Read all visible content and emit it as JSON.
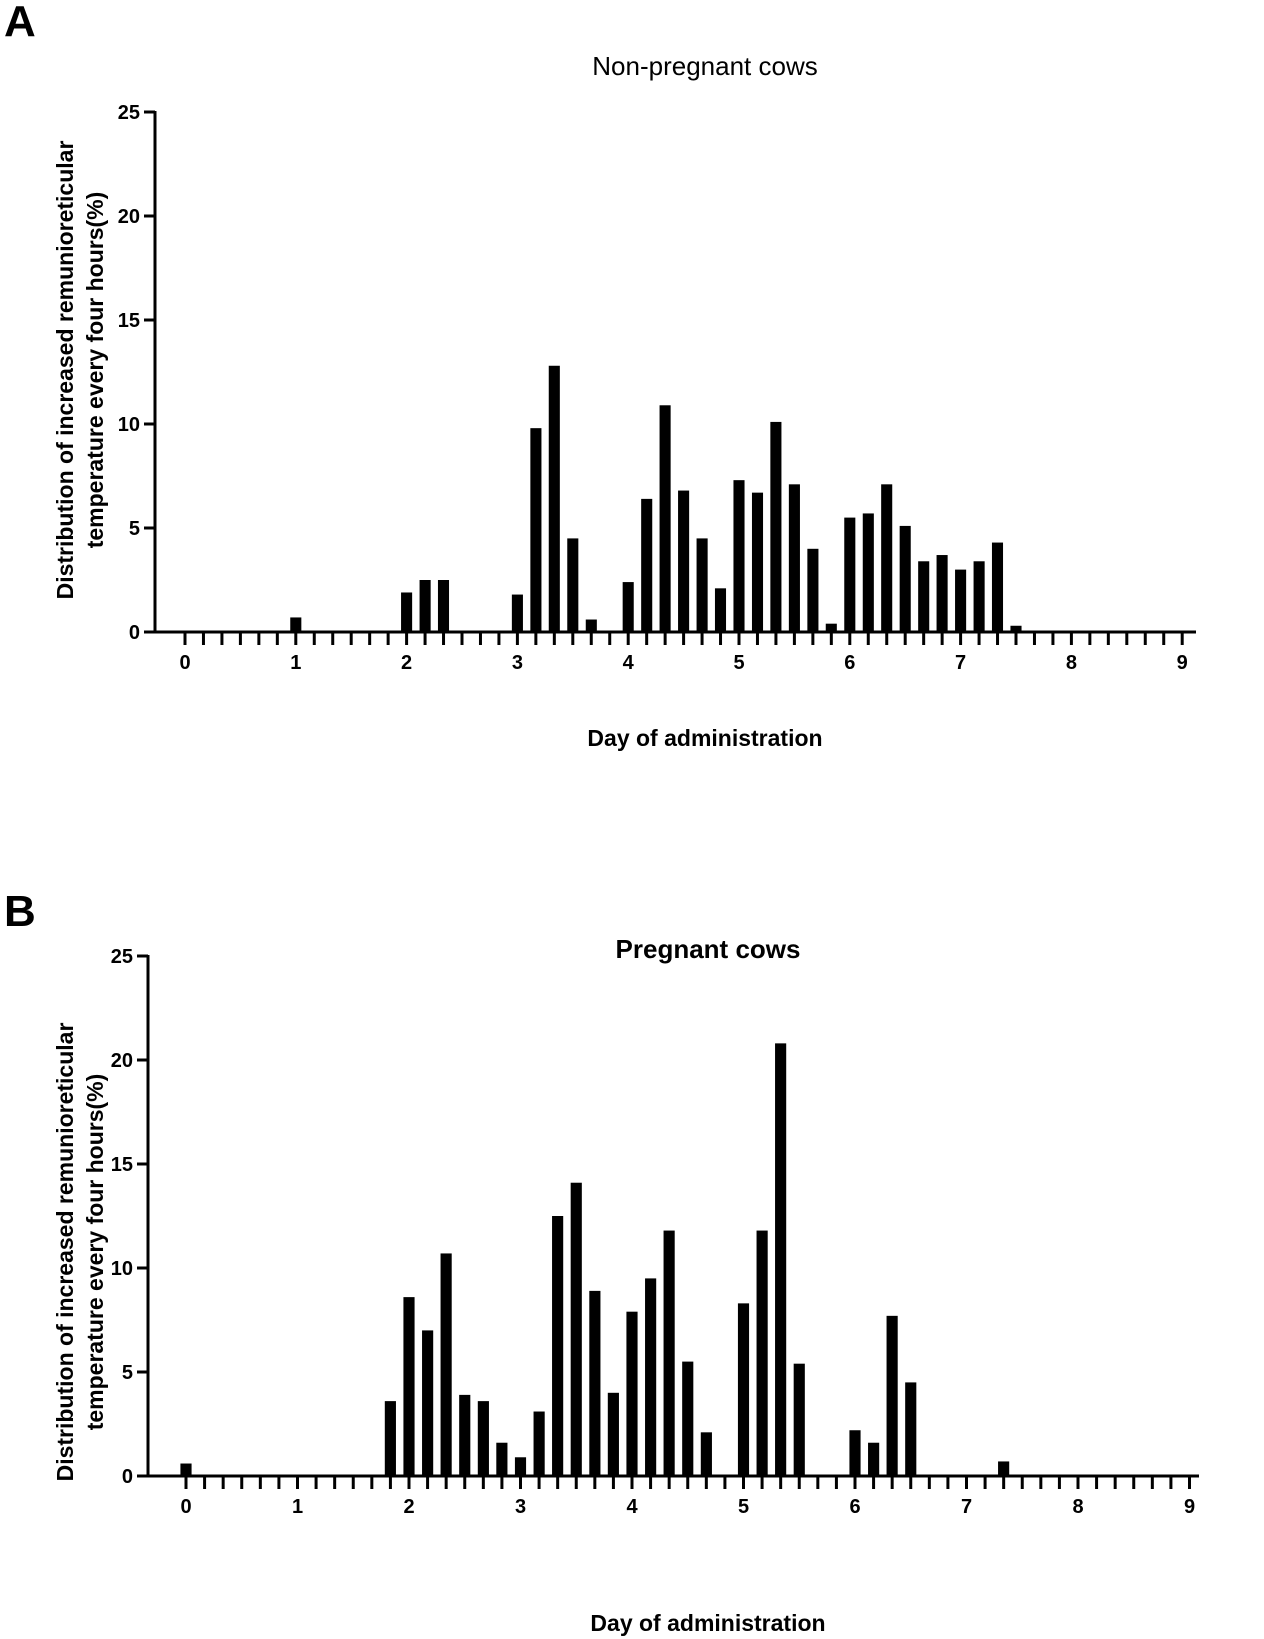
{
  "chart_data": [
    {
      "panel": "A",
      "type": "bar",
      "title": "Non-pregnant cows",
      "xlabel": "Day of administration",
      "ylabel": [
        "Distribution of increased remunioreticular",
        "temperature every four hours(%)"
      ],
      "xlim": [
        0,
        9
      ],
      "ylim": [
        0,
        25
      ],
      "x_ticks": [
        0,
        1,
        2,
        3,
        4,
        5,
        6,
        7,
        8,
        9
      ],
      "y_ticks": [
        0,
        5,
        10,
        15,
        20,
        25
      ],
      "bin_width_days": 0.1667,
      "bars": [
        {
          "x": 1.0,
          "y": 0.7
        },
        {
          "x": 2.0,
          "y": 1.9
        },
        {
          "x": 2.167,
          "y": 2.5
        },
        {
          "x": 2.333,
          "y": 2.5
        },
        {
          "x": 3.0,
          "y": 1.8
        },
        {
          "x": 3.167,
          "y": 9.8
        },
        {
          "x": 3.333,
          "y": 12.8
        },
        {
          "x": 3.5,
          "y": 4.5
        },
        {
          "x": 3.667,
          "y": 0.6
        },
        {
          "x": 4.0,
          "y": 2.4
        },
        {
          "x": 4.167,
          "y": 6.4
        },
        {
          "x": 4.333,
          "y": 10.9
        },
        {
          "x": 4.5,
          "y": 6.8
        },
        {
          "x": 4.667,
          "y": 4.5
        },
        {
          "x": 4.833,
          "y": 2.1
        },
        {
          "x": 5.0,
          "y": 7.3
        },
        {
          "x": 5.167,
          "y": 6.7
        },
        {
          "x": 5.333,
          "y": 10.1
        },
        {
          "x": 5.5,
          "y": 7.1
        },
        {
          "x": 5.667,
          "y": 4.0
        },
        {
          "x": 5.833,
          "y": 0.4
        },
        {
          "x": 6.0,
          "y": 5.5
        },
        {
          "x": 6.167,
          "y": 5.7
        },
        {
          "x": 6.333,
          "y": 7.1
        },
        {
          "x": 6.5,
          "y": 5.1
        },
        {
          "x": 6.667,
          "y": 3.4
        },
        {
          "x": 6.833,
          "y": 3.7
        },
        {
          "x": 7.0,
          "y": 3.0
        },
        {
          "x": 7.167,
          "y": 3.4
        },
        {
          "x": 7.333,
          "y": 4.3
        },
        {
          "x": 7.5,
          "y": 0.3
        }
      ]
    },
    {
      "panel": "B",
      "type": "bar",
      "title": "Pregnant cows",
      "xlabel": "Day of administration",
      "ylabel": [
        "Distribution of increased remunioreticular",
        "temperature every four hours(%)"
      ],
      "xlim": [
        0,
        9
      ],
      "ylim": [
        0,
        25
      ],
      "x_ticks": [
        0,
        1,
        2,
        3,
        4,
        5,
        6,
        7,
        8,
        9
      ],
      "y_ticks": [
        0,
        5,
        10,
        15,
        20,
        25
      ],
      "bin_width_days": 0.1667,
      "bars": [
        {
          "x": 0.0,
          "y": 0.6
        },
        {
          "x": 1.833,
          "y": 3.6
        },
        {
          "x": 2.0,
          "y": 8.6
        },
        {
          "x": 2.167,
          "y": 7.0
        },
        {
          "x": 2.333,
          "y": 10.7
        },
        {
          "x": 2.5,
          "y": 3.9
        },
        {
          "x": 2.667,
          "y": 3.6
        },
        {
          "x": 2.833,
          "y": 1.6
        },
        {
          "x": 3.0,
          "y": 0.9
        },
        {
          "x": 3.167,
          "y": 3.1
        },
        {
          "x": 3.333,
          "y": 12.5
        },
        {
          "x": 3.5,
          "y": 14.1
        },
        {
          "x": 3.667,
          "y": 8.9
        },
        {
          "x": 3.833,
          "y": 4.0
        },
        {
          "x": 4.0,
          "y": 7.9
        },
        {
          "x": 4.167,
          "y": 9.5
        },
        {
          "x": 4.333,
          "y": 11.8
        },
        {
          "x": 4.5,
          "y": 5.5
        },
        {
          "x": 4.667,
          "y": 2.1
        },
        {
          "x": 5.0,
          "y": 8.3
        },
        {
          "x": 5.167,
          "y": 11.8
        },
        {
          "x": 5.333,
          "y": 20.8
        },
        {
          "x": 5.5,
          "y": 5.4
        },
        {
          "x": 6.0,
          "y": 2.2
        },
        {
          "x": 6.167,
          "y": 1.6
        },
        {
          "x": 6.333,
          "y": 7.7
        },
        {
          "x": 6.5,
          "y": 4.5
        },
        {
          "x": 7.333,
          "y": 0.7
        }
      ]
    }
  ]
}
